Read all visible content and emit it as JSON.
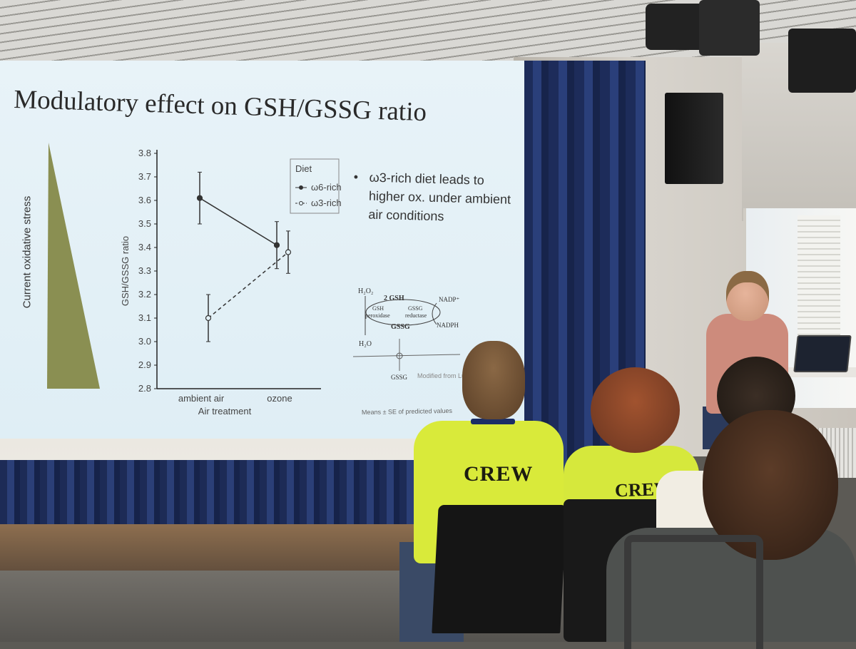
{
  "slide": {
    "title": "Modulatory effect on GSH/GSSG ratio",
    "triangle_label": "Current oxidative stress",
    "bullet": "ω3-rich diet leads to higher ox. under ambient air conditions",
    "footnote": "Means ± SE of predicted values",
    "credit": "Modified from Lu 2",
    "diagram": {
      "h2o2": "H₂O₂",
      "gsh": "2 GSH",
      "nadp": "NADP⁺",
      "gsh_perox": "GSH",
      "gsh_perox2": "peroxidase",
      "gssg_red": "GSSG",
      "gssg_red2": "reductase",
      "gssg_mid": "GSSG",
      "nadph": "NADPH",
      "h2o": "H₂O",
      "gssg_bottom": "GSSG"
    }
  },
  "chart_data": {
    "type": "line",
    "categories": [
      "ambient air",
      "ozone"
    ],
    "xlabel": "Air treatment",
    "ylabel": "GSH/GSSG ratio",
    "ylim": [
      2.8,
      3.8
    ],
    "yticks": [
      "3.8",
      "3.7",
      "3.6",
      "3.5",
      "3.4",
      "3.3",
      "3.2",
      "3.1",
      "3.0",
      "2.9",
      "2.8"
    ],
    "legend_title": "Diet",
    "legend_position": "top-right",
    "series": [
      {
        "name": "ω6-rich",
        "values": [
          3.61,
          3.41
        ],
        "se_low": [
          3.5,
          3.31
        ],
        "se_high": [
          3.72,
          3.51
        ],
        "marker": "filled",
        "line": "solid"
      },
      {
        "name": "ω3-rich",
        "values": [
          3.1,
          3.38
        ],
        "se_low": [
          3.0,
          3.29
        ],
        "se_high": [
          3.2,
          3.47
        ],
        "marker": "open",
        "line": "dashed"
      }
    ]
  },
  "audience": {
    "shirt_text_1": "CREW",
    "shirt_text_2": "CREW"
  },
  "colors": {
    "slide_bg": "#e3f1f7",
    "triangle": "#8a8f52",
    "crew_shirt": "#d9ea3a",
    "curtain": "#22336a"
  }
}
